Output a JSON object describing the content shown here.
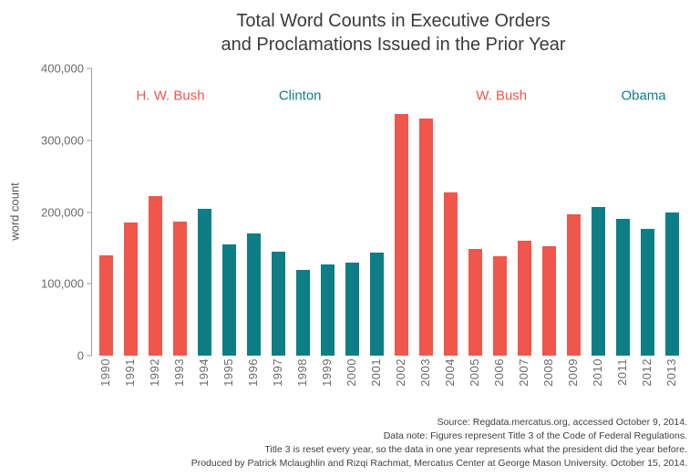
{
  "title": {
    "line1": "Total Word Counts in Executive Orders",
    "line2": "and Proclamations Issued in the Prior Year"
  },
  "chart_data": {
    "type": "bar",
    "title": "Total Word Counts in Executive Orders and Proclamations Issued in the Prior Year",
    "xlabel": "",
    "ylabel": "word count",
    "ylim": [
      0,
      400000
    ],
    "grid": false,
    "legend_position": "none",
    "categories": [
      "1990",
      "1991",
      "1992",
      "1993",
      "1994",
      "1995",
      "1996",
      "1997",
      "1998",
      "1999",
      "2000",
      "2001",
      "2002",
      "2003",
      "2004",
      "2005",
      "2006",
      "2007",
      "2008",
      "2009",
      "2010",
      "2011",
      "2012",
      "2013"
    ],
    "values": [
      140000,
      186000,
      222000,
      187000,
      205000,
      155000,
      170000,
      145000,
      120000,
      127000,
      129000,
      143000,
      336000,
      330000,
      227000,
      149000,
      138000,
      160000,
      152000,
      197000,
      207000,
      190000,
      177000,
      199000
    ],
    "party": [
      "R",
      "R",
      "R",
      "R",
      "D",
      "D",
      "D",
      "D",
      "D",
      "D",
      "D",
      "D",
      "R",
      "R",
      "R",
      "R",
      "R",
      "R",
      "R",
      "R",
      "D",
      "D",
      "D",
      "D"
    ],
    "palette": {
      "R": "#f0564c",
      "D": "#0e7e86"
    },
    "yticks": [
      {
        "value": 0,
        "label": "0"
      },
      {
        "value": 100000,
        "label": "100,000"
      },
      {
        "value": 200000,
        "label": "200,000"
      },
      {
        "value": 300000,
        "label": "300,000"
      },
      {
        "value": 400000,
        "label": "400,000"
      }
    ],
    "eras": [
      {
        "label": "H. W. Bush",
        "party": "R"
      },
      {
        "label": "Clinton",
        "party": "D"
      },
      {
        "label": "W. Bush",
        "party": "R"
      },
      {
        "label": "Obama",
        "party": "D"
      }
    ]
  },
  "footer": {
    "lines": [
      "Source: Regdata.mercatus.org, accessed October 9, 2014.",
      "Data note: Figures represent Title 3 of the Code of Federal Regulations.",
      "Title 3 is reset every year, so the data in one year represents what the president did the year before.",
      "Produced by Patrick Mclaughlin and Rizqi Rachmat, Mercatus Center at George Mason University. October 15, 2014."
    ]
  }
}
